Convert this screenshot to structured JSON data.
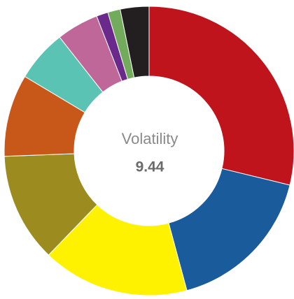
{
  "chart_data": {
    "type": "donut",
    "values": [
      28.8,
      17.0,
      16.4,
      12.2,
      9.2,
      5.8,
      4.7,
      1.3,
      1.4,
      3.2
    ],
    "colors": [
      "#c0141c",
      "#1a5b9b",
      "#fff200",
      "#9c8c20",
      "#c8581a",
      "#5ac3b4",
      "#c0679a",
      "#6a2a8c",
      "#72ab5c",
      "#231f20"
    ],
    "center_label": "Volatility",
    "center_value": 9.44
  }
}
